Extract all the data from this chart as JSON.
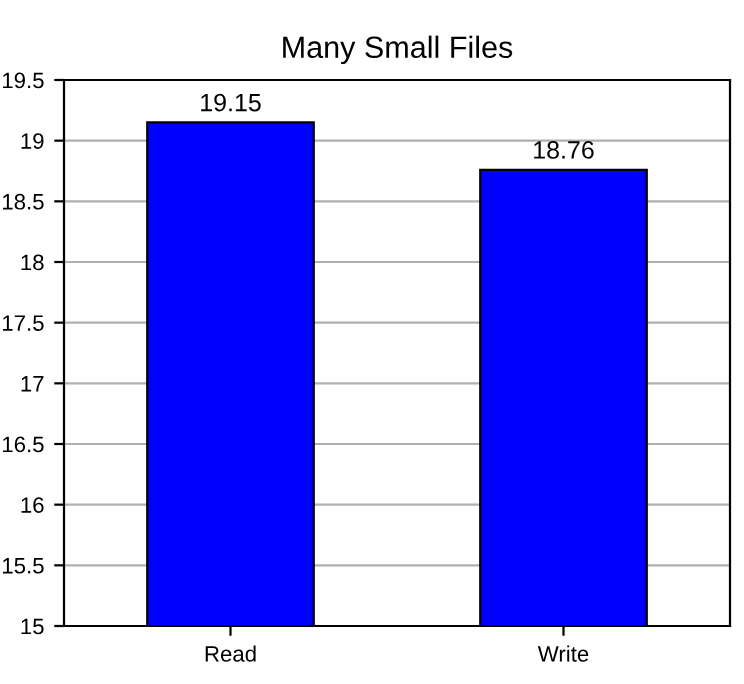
{
  "chart_data": {
    "type": "bar",
    "title": "Many Small Files",
    "categories": [
      "Read",
      "Write"
    ],
    "values": [
      19.15,
      18.76
    ],
    "color": "#0000ff",
    "ylim": [
      15,
      19.5
    ],
    "yticks": [
      15,
      15.5,
      16,
      16.5,
      17,
      17.5,
      18,
      18.5,
      19,
      19.5
    ],
    "grid": "y",
    "data_labels": true
  }
}
